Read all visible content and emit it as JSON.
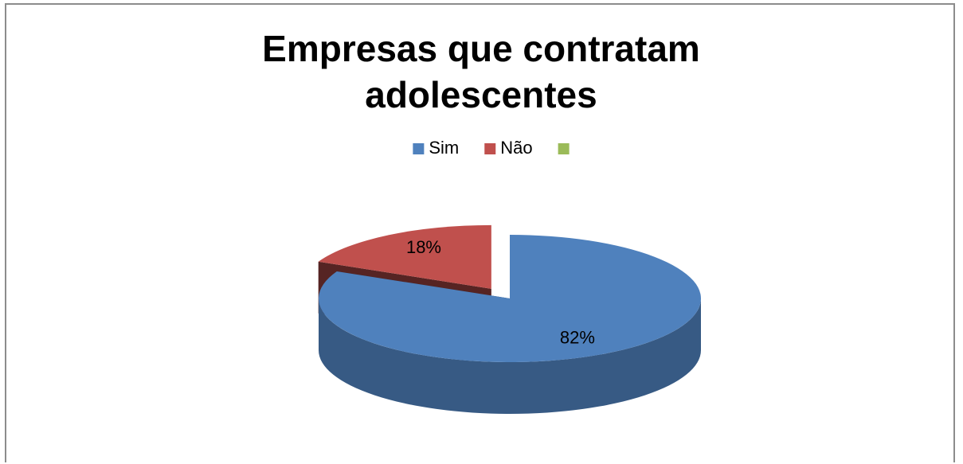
{
  "chart_data": {
    "type": "pie3d",
    "title": "Empresas que contratam adolescentes",
    "categories": [
      "Sim",
      "Não",
      null
    ],
    "values": [
      82,
      18,
      0
    ],
    "value_labels": [
      "82%",
      "18%",
      null
    ],
    "colors": [
      "#4f81bd",
      "#c0504d",
      "#9bbb59"
    ],
    "exploded": [
      false,
      true,
      false
    ],
    "legend": "top"
  }
}
